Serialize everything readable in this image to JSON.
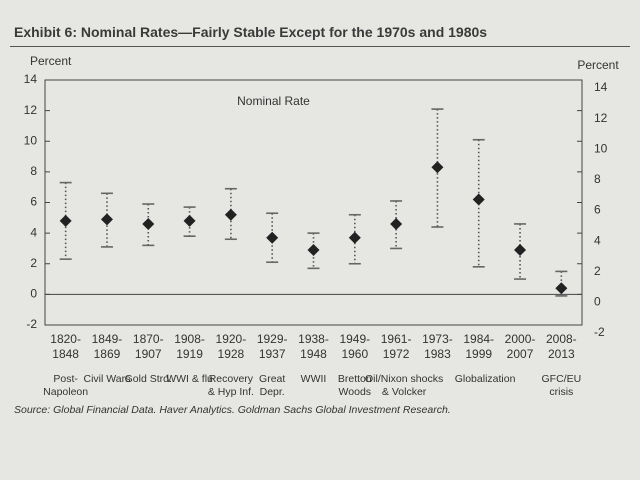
{
  "chart_data": {
    "type": "dot-range",
    "title": "Exhibit 6: Nominal Rates—Fairly Stable Except for the 1970s and 1980s",
    "y_label": "Percent",
    "categories": [
      "1820-1848",
      "1849-1869",
      "1870-1907",
      "1908-1919",
      "1920-1928",
      "1929-1937",
      "1938-1948",
      "1949-1960",
      "1961-1972",
      "1973-1983",
      "1984-1999",
      "2000-2007",
      "2008-2013"
    ],
    "descriptions": [
      "Post-Napoleon",
      "Civil Wars",
      "Gold Strd.",
      "WWI & flu",
      "Recovery & Hyp Inf.",
      "Great Depr.",
      "WWII",
      "Bretton Woods",
      "Oil/Nixon shocks & Volcker",
      null,
      "Globalization",
      null,
      "GFC/EU crisis"
    ],
    "series": [
      {
        "name": "Nominal Rate",
        "color": "#222222",
        "values": [
          4.8,
          4.9,
          4.6,
          4.8,
          5.2,
          3.7,
          2.9,
          3.7,
          4.6,
          8.3,
          6.2,
          2.9,
          0.4
        ],
        "high": [
          7.3,
          6.6,
          5.9,
          5.7,
          6.9,
          5.3,
          4.0,
          5.2,
          6.1,
          12.1,
          10.1,
          4.6,
          1.5
        ],
        "low": [
          2.3,
          3.1,
          3.2,
          3.8,
          3.6,
          2.1,
          1.7,
          2.0,
          3.0,
          4.4,
          1.8,
          1.0,
          -0.1
        ]
      }
    ],
    "ylim": [
      -2,
      14
    ],
    "yticks": [
      -2,
      0,
      2,
      4,
      6,
      8,
      10,
      12,
      14
    ],
    "source": "Source: Global Financial Data. Haver Analytics. Goldman Sachs Global Investment Research."
  }
}
